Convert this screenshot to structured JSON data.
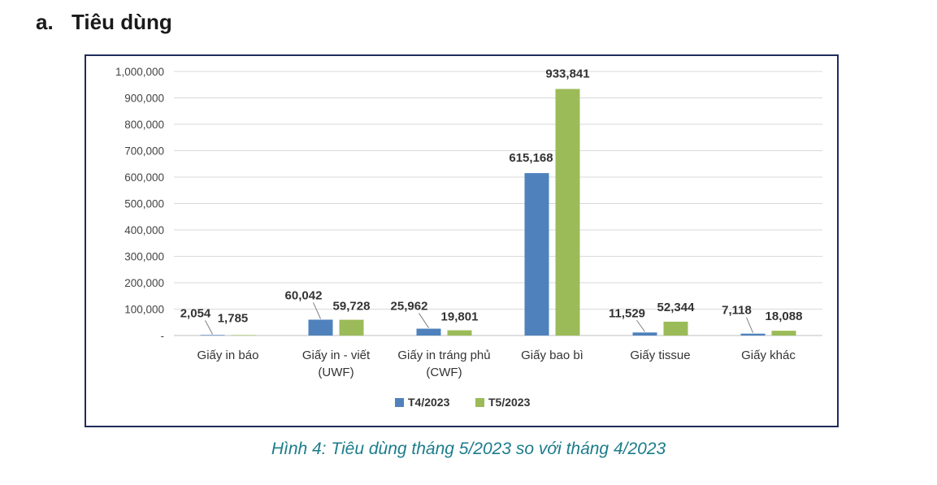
{
  "heading": {
    "number": "a.",
    "title": "Tiêu dùng"
  },
  "caption": "Hình 4: Tiêu dùng tháng 5/2023 so với tháng 4/2023",
  "colors": {
    "series1": "#4f81bd",
    "series2": "#9bbb59",
    "frame": "#1f2d5a",
    "caption": "#1b7c8a",
    "grid": "#d9d9d9"
  },
  "chart_data": {
    "type": "bar",
    "title": "",
    "xlabel": "",
    "ylabel": "",
    "ylim": [
      0,
      1000000
    ],
    "yticks": [
      0,
      100000,
      200000,
      300000,
      400000,
      500000,
      600000,
      700000,
      800000,
      900000,
      1000000
    ],
    "ytick_labels": [
      "-",
      "100,000",
      "200,000",
      "300,000",
      "400,000",
      "500,000",
      "600,000",
      "700,000",
      "800,000",
      "900,000",
      "1,000,000"
    ],
    "categories": [
      [
        "Giấy in báo"
      ],
      [
        "Giấy in - viết",
        "(UWF)"
      ],
      [
        "Giấy in tráng phủ",
        "(CWF)"
      ],
      [
        "Giấy bao bì"
      ],
      [
        "Giấy tissue"
      ],
      [
        "Giấy khác"
      ]
    ],
    "series": [
      {
        "name": "T4/2023",
        "values": [
          2054,
          60042,
          25962,
          615168,
          11529,
          7118
        ],
        "labels": [
          "2,054",
          "60,042",
          "25,962",
          "615,168",
          "11,529",
          "7,118"
        ]
      },
      {
        "name": "T5/2023",
        "values": [
          1785,
          59728,
          19801,
          933841,
          52344,
          18088
        ],
        "labels": [
          "1,785",
          "59,728",
          "19,801",
          "933,841",
          "52,344",
          "18,088"
        ]
      }
    ],
    "legend_position": "bottom-center"
  }
}
